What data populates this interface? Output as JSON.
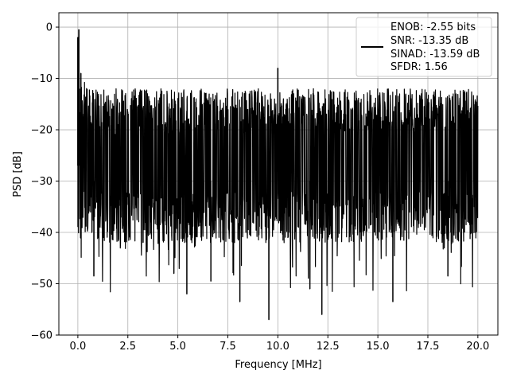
{
  "chart_data": {
    "type": "line",
    "xlabel": "Frequency [MHz]",
    "ylabel": "PSD [dB]",
    "xlim": [
      -0.95,
      21.0
    ],
    "ylim": [
      -60,
      2.8
    ],
    "xticks": [
      0.0,
      2.5,
      5.0,
      7.5,
      10.0,
      12.5,
      15.0,
      17.5,
      20.0
    ],
    "xtick_labels": [
      "0.0",
      "2.5",
      "5.0",
      "7.5",
      "10.0",
      "12.5",
      "15.0",
      "17.5",
      "20.0"
    ],
    "yticks": [
      0,
      -10,
      -20,
      -30,
      -40,
      -50,
      -60
    ],
    "ytick_labels": [
      "0",
      "−10",
      "−20",
      "−30",
      "−40",
      "−50",
      "−60"
    ],
    "grid": true,
    "legend_position": "top-right",
    "legend_text": [
      "ENOB: -2.55 bits",
      "SNR: -13.35 dB",
      "SINAD: -13.59 dB",
      "SFDR: 1.56"
    ],
    "series_color": "#000000",
    "noise_floor_upper_db": -18,
    "noise_floor_lower_db": -36,
    "peaks": [
      {
        "x": 0.0,
        "y": -2
      },
      {
        "x": 0.05,
        "y": -0.5
      },
      {
        "x": 0.15,
        "y": -9
      },
      {
        "x": 10.0,
        "y": -8
      }
    ],
    "deep_dips": [
      {
        "x": 0.8,
        "y": -48.5
      },
      {
        "x": 4.8,
        "y": -48
      },
      {
        "x": 5.45,
        "y": -52
      },
      {
        "x": 8.1,
        "y": -53.5
      },
      {
        "x": 9.55,
        "y": -57
      },
      {
        "x": 11.6,
        "y": -51
      },
      {
        "x": 12.2,
        "y": -56
      },
      {
        "x": 15.75,
        "y": -53.5
      },
      {
        "x": 6.65,
        "y": -49.5
      },
      {
        "x": 18.5,
        "y": -48.5
      }
    ]
  }
}
